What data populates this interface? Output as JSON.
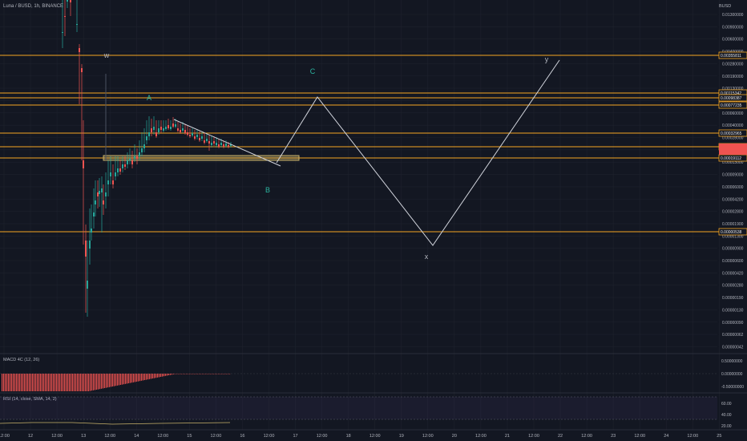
{
  "header": {
    "symbol": "Luna / BUSD, 1h, BINANCE",
    "currency": "BUSD"
  },
  "chart_data": {
    "type": "candlestick",
    "y_scale": "log",
    "price_ticks": [
      "0.01300000",
      "0.00900000",
      "0.00600000",
      "0.00400000",
      "0.00280000",
      "0.00190000",
      "0.00130000",
      "0.00090000",
      "0.00060000",
      "0.00040000",
      "0.00028000",
      "0.00019000",
      "0.00013000",
      "0.00009000",
      "0.00006000",
      "0.00004200",
      "0.00002800",
      "0.00001900",
      "0.00001300",
      "0.00000900",
      "0.00000600",
      "0.00000420",
      "0.00000280",
      "0.00000190",
      "0.00000130",
      "0.00000090",
      "0.00000062",
      "0.00000042"
    ],
    "level_labels": [
      "0.00355811",
      "0.00115342",
      "0.00098387",
      "0.00077235",
      "0.00032965",
      "0.00021727",
      "0.00019112",
      "0.00000538"
    ],
    "time_ticks": [
      "12:00",
      "12",
      "12:00",
      "13",
      "12:00",
      "14",
      "12:00",
      "15",
      "12:00",
      "16",
      "12:00",
      "17",
      "12:00",
      "18",
      "12:00",
      "19",
      "12:00",
      "20",
      "12:00",
      "21",
      "12:00",
      "22",
      "12:00",
      "23",
      "12:00",
      "24",
      "12:00",
      "25"
    ],
    "wave_labels": [
      "w",
      "A",
      "B",
      "C",
      "x",
      "y"
    ],
    "colors": {
      "up": "#26a69a",
      "down": "#ef5350",
      "level": "#f5a623",
      "zone": "#c8b26a",
      "wave_up": "#2bb5a0",
      "path": "#d1d4dc"
    }
  },
  "macd": {
    "label": "MACD 4C (12, 26)",
    "ticks": [
      "0.50000000",
      "0.00000000",
      "-0.50000000"
    ]
  },
  "rsi": {
    "label": "RSI (14, close, SMA, 14, 2)",
    "ticks": [
      "60.00",
      "40.00",
      "20.00"
    ]
  }
}
